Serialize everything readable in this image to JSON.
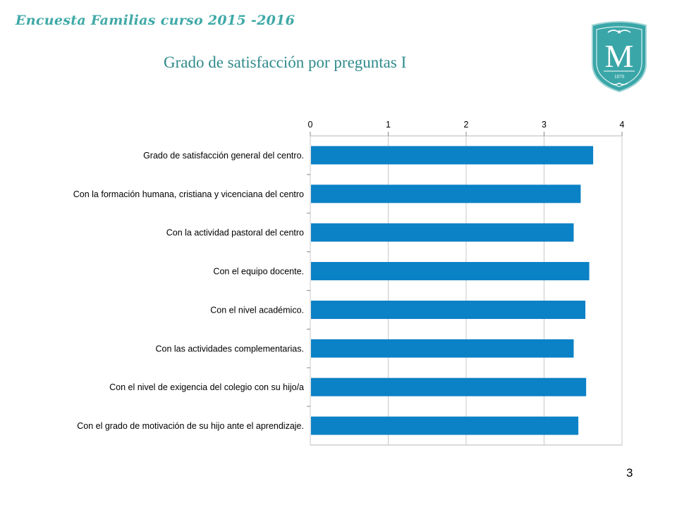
{
  "header": {
    "survey_title": "Encuesta Familias curso 2015 -2016",
    "slide_title": "Grado de satisfacción por preguntas I"
  },
  "logo": {
    "letter": "M",
    "year": "1870",
    "color": "#3aa6a8"
  },
  "footer": {
    "page_number": "3"
  },
  "chart_data": {
    "type": "bar",
    "orientation": "horizontal",
    "x_axis_position": "top",
    "xlim": [
      0,
      4
    ],
    "x_ticks": [
      "0",
      "1",
      "2",
      "3",
      "4"
    ],
    "grid": true,
    "bar_color": "#0b81c6",
    "categories": [
      "Grado de satisfacción general del centro.",
      "Con la formación humana, cristiana y vicenciana del centro",
      "Con la actividad pastoral del centro",
      "Con el equipo docente.",
      "Con el nivel académico.",
      "Con las actividades complementarias.",
      "Con el nivel de exigencia del colegio con su hijo/a",
      "Con el grado de motivación de su hijo ante el aprendizaje."
    ],
    "values": [
      3.63,
      3.47,
      3.38,
      3.58,
      3.53,
      3.38,
      3.54,
      3.44
    ]
  }
}
